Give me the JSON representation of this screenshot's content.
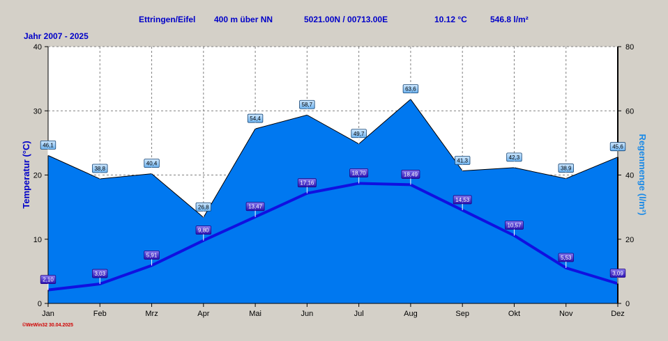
{
  "chart_data": {
    "type": "climate",
    "header": [
      "Ettringen/Eifel",
      "400 m über NN",
      "5021.00N / 00713.00E",
      "10.12 °C",
      "546.8 l/m²"
    ],
    "subtitle": "Jahr  2007 - 2025",
    "footer": "©WeWin32  30.04.2025",
    "ylabel": "Temperatur  (°C)",
    "y2label": "Regenmenge   (l/m²)",
    "categories": [
      "Jan",
      "Feb",
      "Mrz",
      "Apr",
      "Mai",
      "Jun",
      "Jul",
      "Aug",
      "Sep",
      "Okt",
      "Nov",
      "Dez"
    ],
    "ylim": [
      0,
      40
    ],
    "yticks": [
      0,
      10,
      20,
      30,
      40
    ],
    "y2lim": [
      0,
      80
    ],
    "y2ticks": [
      0,
      20,
      40,
      60,
      80
    ],
    "grid": true,
    "series": [
      {
        "kind": "area",
        "axis": "y2",
        "color": "#0078f0",
        "values": [
          46.1,
          38.8,
          40.4,
          26.8,
          54.4,
          58.7,
          49.7,
          63.6,
          41.3,
          42.3,
          38.9,
          45.6
        ],
        "value_labels": [
          "46,1",
          "38,8",
          "40,4",
          "26,8",
          "54,4",
          "58,7",
          "49,7",
          "63,6",
          "41,3",
          "42,3",
          "38,9",
          "45,6"
        ]
      },
      {
        "kind": "line",
        "color": "#1010e0",
        "values": [
          2.1,
          3.03,
          5.91,
          9.8,
          13.47,
          17.16,
          18.7,
          18.49,
          14.53,
          10.57,
          5.53,
          3.09
        ],
        "value_labels": [
          "2,10",
          "3,03",
          "5,91",
          "9,80",
          "13,47",
          "17,16",
          "18,70",
          "18,49",
          "14,53",
          "10,57",
          "5,53",
          "3,09"
        ]
      }
    ]
  }
}
